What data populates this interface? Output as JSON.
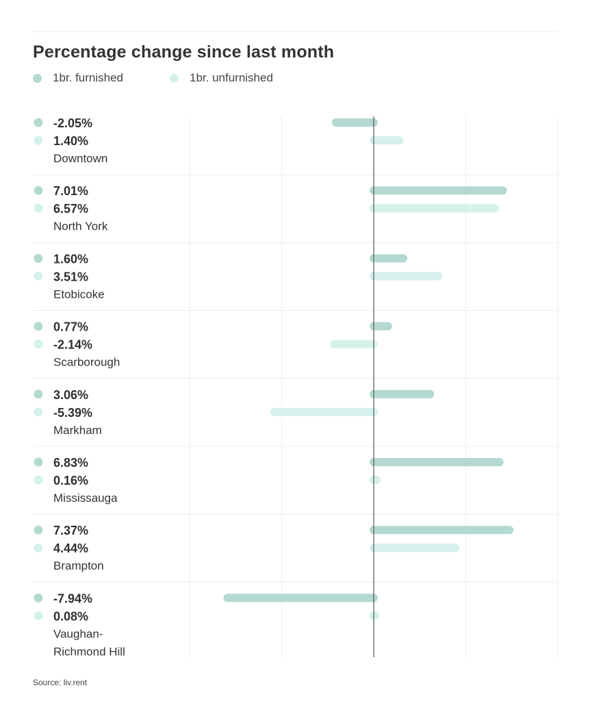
{
  "chart_data": {
    "type": "bar",
    "orientation": "horizontal",
    "title": "Percentage change since last month",
    "source": "Source: liv.rent",
    "colors": {
      "furnished": "#b3d9d0",
      "unfurnished": "#d5f1ec"
    },
    "xlim": [
      -10,
      10
    ],
    "grid": true,
    "legend_position": "top-left",
    "series": [
      {
        "name": "1br. furnished",
        "values": [
          -2.05,
          7.01,
          1.6,
          0.77,
          3.06,
          6.83,
          7.37,
          -7.94
        ]
      },
      {
        "name": "1br. unfurnished",
        "values": [
          1.4,
          6.57,
          3.51,
          -2.14,
          -5.39,
          0.16,
          4.44,
          0.08
        ]
      }
    ],
    "categories": [
      {
        "name": "Downtown",
        "lines": [
          "Downtown"
        ],
        "labels": [
          "-2.05%",
          "1.40%"
        ]
      },
      {
        "name": "North York",
        "lines": [
          "North York"
        ],
        "labels": [
          "7.01%",
          "6.57%"
        ]
      },
      {
        "name": "Etobicoke",
        "lines": [
          "Etobicoke"
        ],
        "labels": [
          "1.60%",
          "3.51%"
        ]
      },
      {
        "name": "Scarborough",
        "lines": [
          "Scarborough"
        ],
        "labels": [
          "0.77%",
          "-2.14%"
        ]
      },
      {
        "name": "Markham",
        "lines": [
          "Markham"
        ],
        "labels": [
          "3.06%",
          "-5.39%"
        ]
      },
      {
        "name": "Mississauga",
        "lines": [
          "Mississauga"
        ],
        "labels": [
          "6.83%",
          "0.16%"
        ]
      },
      {
        "name": "Brampton",
        "lines": [
          "Brampton"
        ],
        "labels": [
          "7.37%",
          "4.44%"
        ]
      },
      {
        "name": "Vaughan-Richmond Hill",
        "lines": [
          "Vaughan-",
          "Richmond Hill"
        ],
        "labels": [
          "-7.94%",
          "0.08%"
        ]
      }
    ]
  }
}
